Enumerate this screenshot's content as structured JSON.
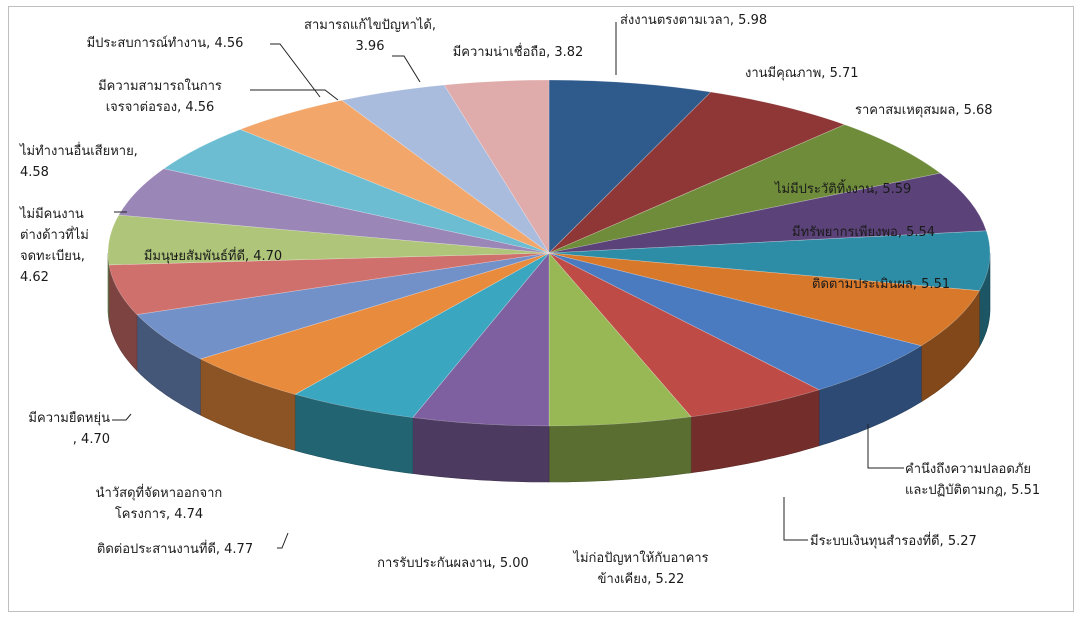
{
  "chart_data": {
    "type": "pie",
    "title": "",
    "legend": "none",
    "start": "12 o'clock",
    "direction": "clockwise",
    "slices": [
      {
        "label": [
          "ส่งงานตรงตามเวลา, 5.98"
        ],
        "value": 5.98,
        "color": "#2F5A8C"
      },
      {
        "label": [
          "งานมีคุณภาพ, 5.71"
        ],
        "value": 5.71,
        "color": "#8E3736"
      },
      {
        "label": [
          "ราคาสมเหตุสมผล, 5.68"
        ],
        "value": 5.68,
        "color": "#6F8C3A"
      },
      {
        "label": [
          "ไม่มีประวัติทิ้งงาน, 5.59"
        ],
        "value": 5.59,
        "color": "#5B4379"
      },
      {
        "label": [
          "มีทรัพยากรเพียงพอ, 5.54"
        ],
        "value": 5.54,
        "color": "#2E8DA6"
      },
      {
        "label": [
          "ติดตามประเมินผล, 5.51"
        ],
        "value": 5.51,
        "color": "#D8782A"
      },
      {
        "label": [
          "คำนึงถึงความปลอดภัย",
          "และปฏิบัติตามกฎ, 5.51"
        ],
        "value": 5.51,
        "color": "#4A7BC0"
      },
      {
        "label": [
          "มีระบบเงินทุนสำรองที่ดี, 5.27"
        ],
        "value": 5.27,
        "color": "#BF4B47"
      },
      {
        "label": [
          "ไม่ก่อปัญหาให้กับอาคาร",
          "ข้างเคียง, 5.22"
        ],
        "value": 5.22,
        "color": "#97B854"
      },
      {
        "label": [
          "การรับประกันผลงาน, 5.00"
        ],
        "value": 5.0,
        "color": "#7E60A0"
      },
      {
        "label": [
          "ติดต่อประสานงานที่ดี, 4.77"
        ],
        "value": 4.77,
        "color": "#3AA6BF"
      },
      {
        "label": [
          "นำวัสดุที่จัดหาออกจาก",
          "โครงการ, 4.74"
        ],
        "value": 4.74,
        "color": "#E98B3C"
      },
      {
        "label": [
          "มีความยืดหยุ่น",
          ", 4.70"
        ],
        "value": 4.7,
        "color": "#7391C9"
      },
      {
        "label": [
          "มีมนุษยสัมพันธ์ที่ดี, 4.70"
        ],
        "value": 4.7,
        "color": "#D0706C"
      },
      {
        "label": [
          "ไม่มีคนงาน",
          "ต่างด้าวที่ไม่",
          "จดทะเบียน,",
          "4.62"
        ],
        "value": 4.62,
        "color": "#AFC67A"
      },
      {
        "label": [
          "ไม่ทำงานอื่นเสียหาย,",
          "4.58"
        ],
        "value": 4.58,
        "color": "#9A86B7"
      },
      {
        "label": [
          "มีความสามารถในการ",
          "เจรจาต่อรอง, 4.56"
        ],
        "value": 4.56,
        "color": "#6CBDD2"
      },
      {
        "label": [
          "มีประสบการณ์ทำงาน, 4.56"
        ],
        "value": 4.56,
        "color": "#F2A66A"
      },
      {
        "label": [
          "สามารถแก้ไขปัญหาได้,",
          "3.96"
        ],
        "value": 3.96,
        "color": "#A9BCDD"
      },
      {
        "label": [
          "มีความน่าเชื่อถือ, 3.82"
        ],
        "value": 3.82,
        "color": "#DFACAB"
      }
    ]
  }
}
